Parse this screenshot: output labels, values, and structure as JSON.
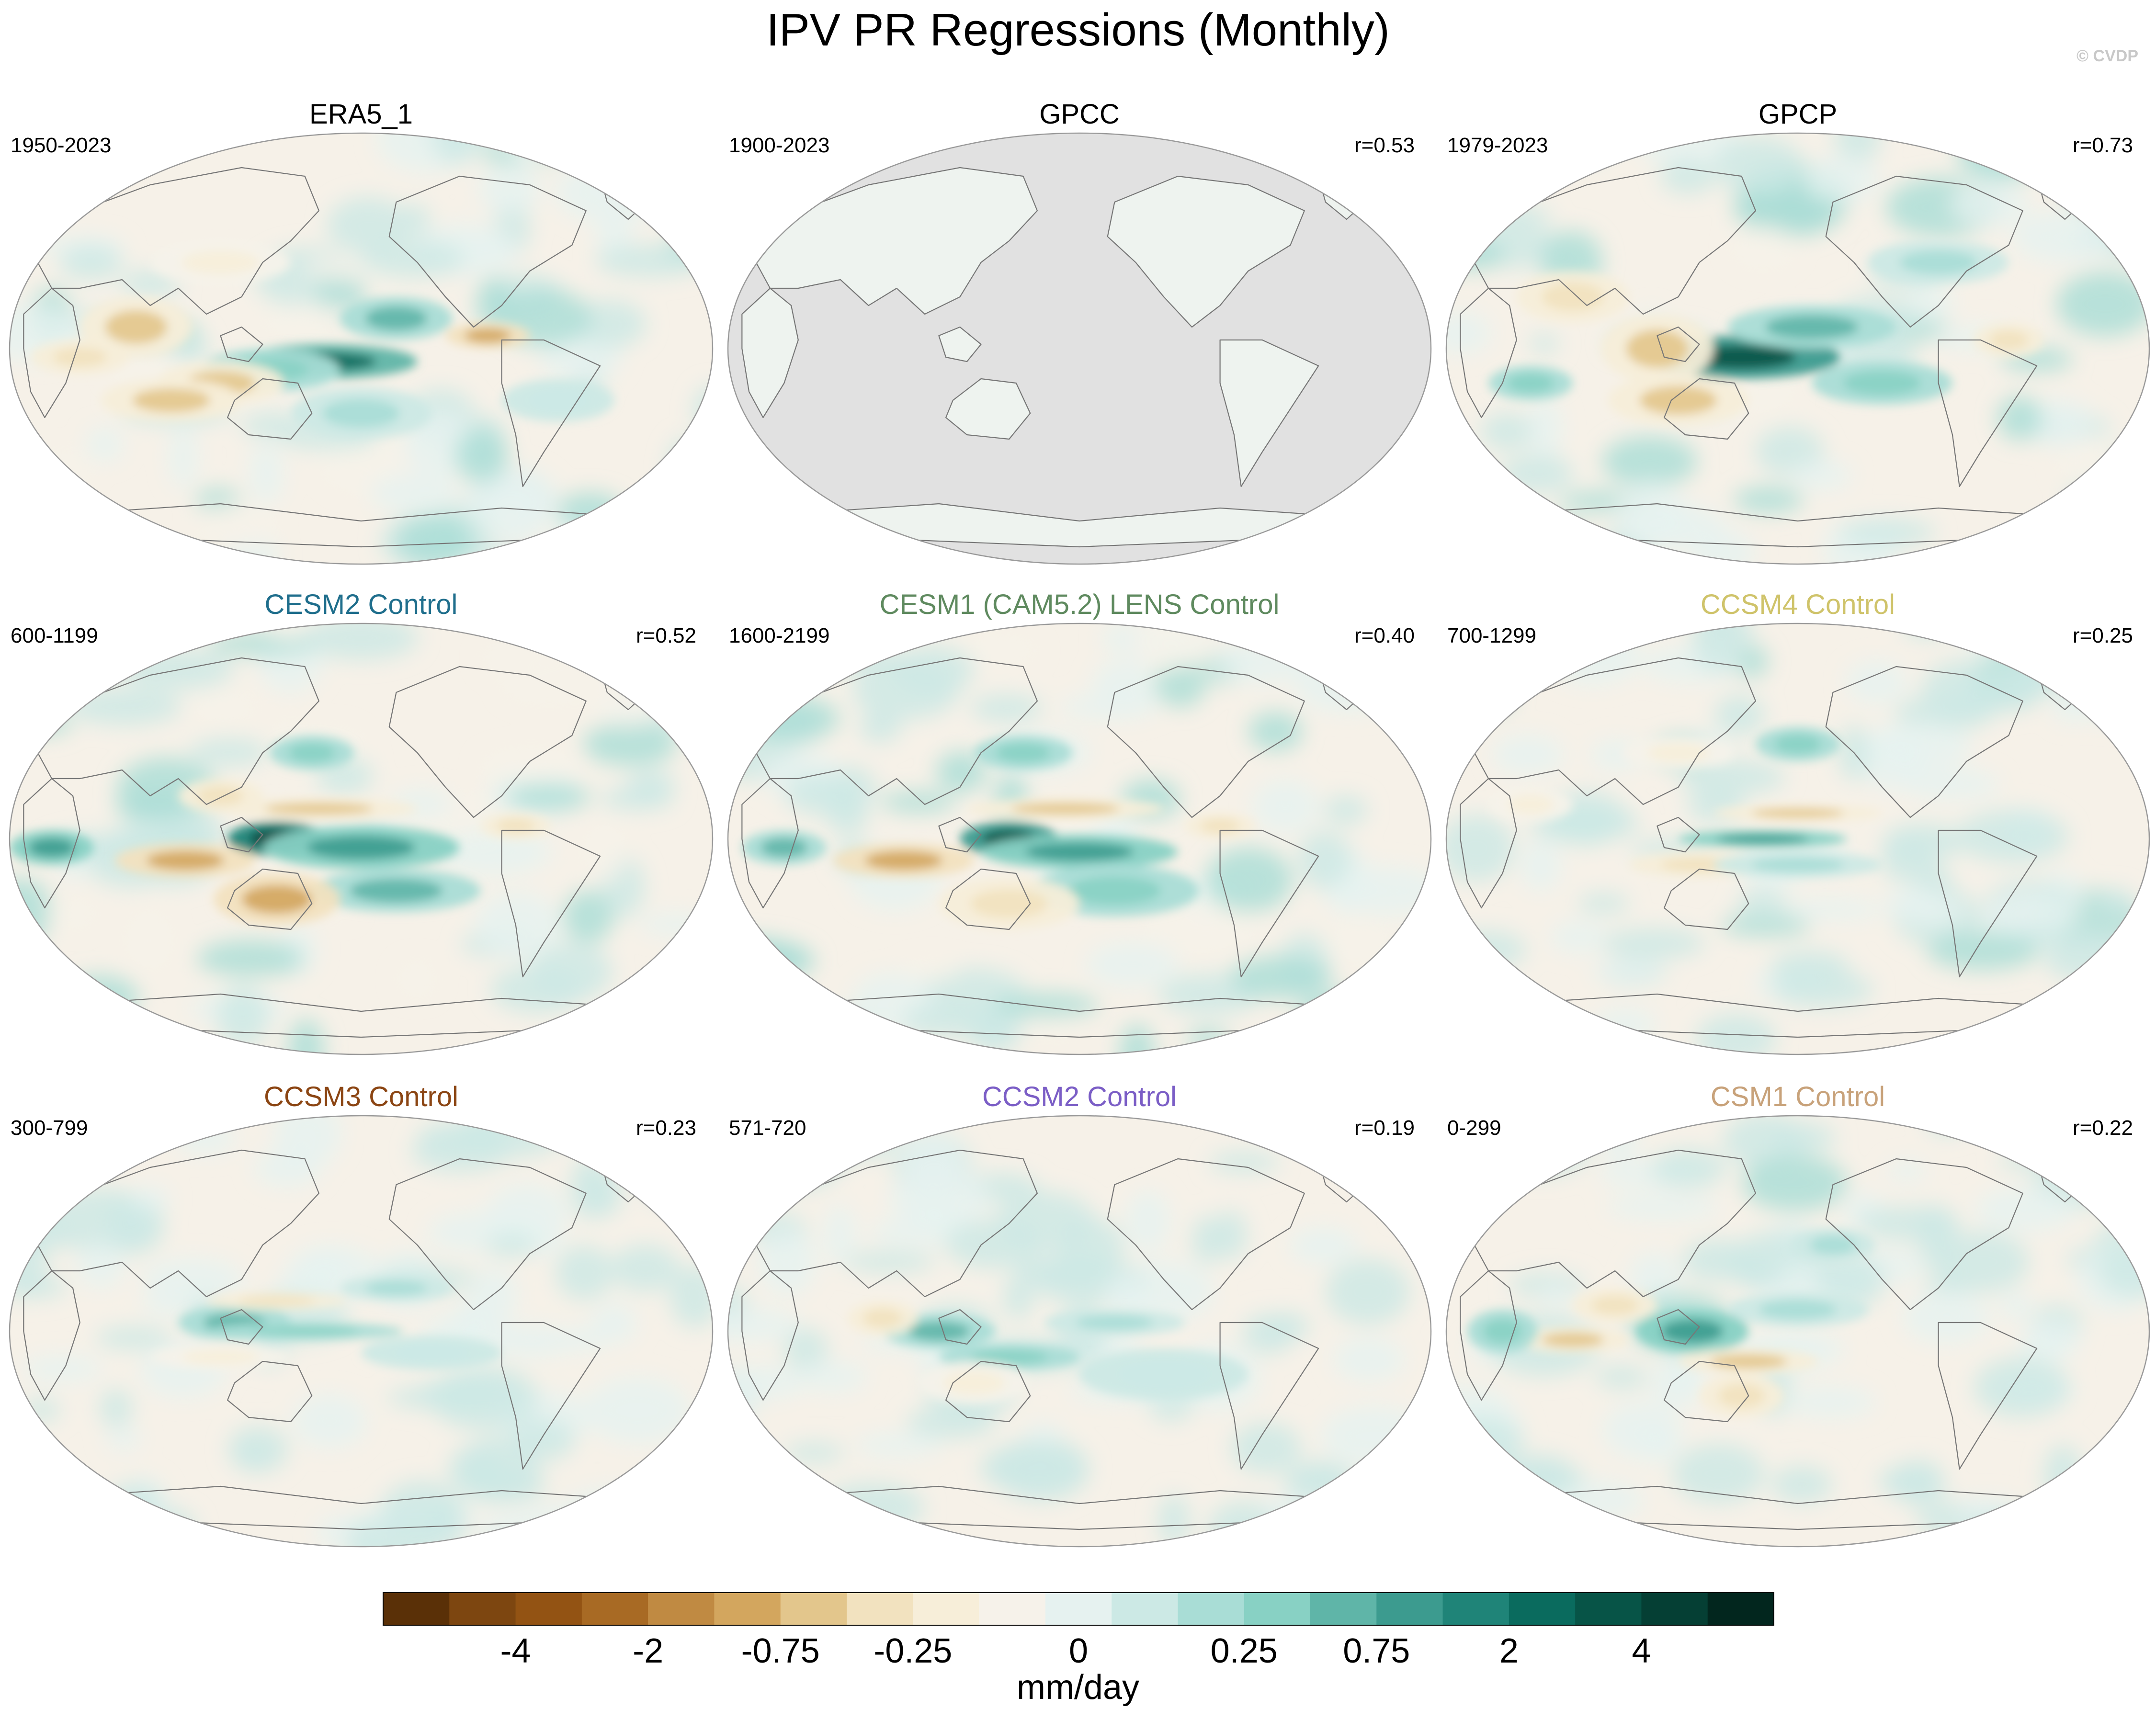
{
  "title": "IPV PR Regressions (Monthly)",
  "watermark": "© CVDP",
  "chart_data": {
    "type": "heatmap",
    "projection": "robinson (pacific-centered)",
    "variable": "PR",
    "units": "mm/day",
    "panels": [
      {
        "title": "ERA5_1",
        "period": "1950-2023",
        "r": "",
        "title_color": "#000000",
        "land_masked": false,
        "pattern_strength": 0.8
      },
      {
        "title": "GPCC",
        "period": "1900-2023",
        "r": "r=0.53",
        "title_color": "#000000",
        "land_masked": true,
        "pattern_strength": 0.5
      },
      {
        "title": "GPCP",
        "period": "1979-2023",
        "r": "r=0.73",
        "title_color": "#000000",
        "land_masked": false,
        "pattern_strength": 0.9
      },
      {
        "title": "CESM2 Control",
        "period": "600-1199",
        "r": "r=0.52",
        "title_color": "#1f6e8c",
        "land_masked": false,
        "pattern_strength": 1.0
      },
      {
        "title": "CESM1 (CAM5.2) LENS Control",
        "period": "1600-2199",
        "r": "r=0.40",
        "title_color": "#5f8a5f",
        "land_masked": false,
        "pattern_strength": 0.9
      },
      {
        "title": "CCSM4 Control",
        "period": "700-1299",
        "r": "r=0.25",
        "title_color": "#cfc36a",
        "land_masked": false,
        "pattern_strength": 0.6
      },
      {
        "title": "CCSM3 Control",
        "period": "300-799",
        "r": "r=0.23",
        "title_color": "#8b4513",
        "land_masked": false,
        "pattern_strength": 0.45
      },
      {
        "title": "CCSM2 Control",
        "period": "571-720",
        "r": "r=0.19",
        "title_color": "#7b5ec6",
        "land_masked": false,
        "pattern_strength": 0.5
      },
      {
        "title": "CSM1 Control",
        "period": "0-299",
        "r": "r=0.22",
        "title_color": "#c8a27a",
        "land_masked": false,
        "pattern_strength": 0.55
      }
    ],
    "colorbar": {
      "label": "mm/day",
      "tick_labels": [
        "-4",
        "-2",
        "-0.75",
        "-0.25",
        "0",
        "0.25",
        "0.75",
        "2",
        "4"
      ],
      "colors": [
        "#5a3007",
        "#7d4610",
        "#935313",
        "#a86a24",
        "#c08a42",
        "#d3a65e",
        "#e3c68c",
        "#f2e2bf",
        "#f7eed9",
        "#f6f2ea",
        "#e6f2f0",
        "#cce9e5",
        "#a9ddd6",
        "#88d1c4",
        "#5fb5a8",
        "#3c9b8f",
        "#1f8478",
        "#0a6b5e",
        "#075447",
        "#053f34",
        "#02261e"
      ],
      "levels": [
        -6,
        -5,
        -4,
        -3,
        -2,
        -1.5,
        -0.75,
        -0.5,
        -0.25,
        -0.1,
        0,
        0.1,
        0.25,
        0.5,
        0.75,
        1.5,
        2,
        3,
        4,
        5,
        6
      ]
    }
  }
}
